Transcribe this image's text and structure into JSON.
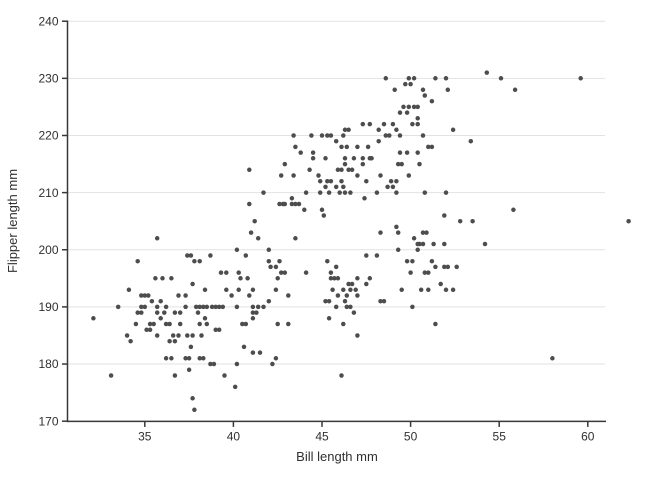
{
  "colors": {
    "point": "#4d4d4d",
    "grid": "#e2e2e2",
    "axis": "#383838",
    "text": "#303030",
    "background": "#ffffff"
  },
  "chart_data": {
    "type": "scatter",
    "title": "",
    "xlabel": "Bill length mm",
    "ylabel": "Flipper length mm",
    "x_ticks": [
      35,
      40,
      45,
      50,
      55,
      60
    ],
    "y_ticks": [
      170,
      180,
      190,
      200,
      210,
      220,
      230,
      240
    ],
    "xlim": [
      30.7,
      61.0
    ],
    "ylim": [
      170,
      240
    ],
    "grid": "horizontal-only",
    "legend": "none",
    "points": [
      [
        48.6,
        230
      ],
      [
        49.9,
        230
      ],
      [
        50.2,
        230
      ],
      [
        51.4,
        230
      ],
      [
        52.0,
        230
      ],
      [
        49.7,
        229
      ],
      [
        50.0,
        229
      ],
      [
        49.1,
        228
      ],
      [
        50.7,
        228
      ],
      [
        52.1,
        228
      ],
      [
        54.3,
        231
      ],
      [
        55.1,
        230
      ],
      [
        55.9,
        228
      ],
      [
        59.6,
        230
      ],
      [
        49.4,
        224
      ],
      [
        49.6,
        225
      ],
      [
        49.8,
        224
      ],
      [
        49.9,
        225
      ],
      [
        50.2,
        225
      ],
      [
        50.4,
        225
      ],
      [
        50.8,
        227
      ],
      [
        51.2,
        226
      ],
      [
        50.4,
        223
      ],
      [
        47.3,
        222
      ],
      [
        47.7,
        222
      ],
      [
        48.5,
        222
      ],
      [
        49.0,
        222
      ],
      [
        50.1,
        222
      ],
      [
        50.4,
        222
      ],
      [
        43.4,
        220
      ],
      [
        44.4,
        220
      ],
      [
        45.0,
        220
      ],
      [
        45.3,
        220
      ],
      [
        45.5,
        220
      ],
      [
        46.2,
        220
      ],
      [
        46.3,
        221
      ],
      [
        46.5,
        221
      ],
      [
        48.2,
        221
      ],
      [
        48.6,
        220
      ],
      [
        48.8,
        220
      ],
      [
        49.2,
        221
      ],
      [
        49.4,
        220
      ],
      [
        50.7,
        220
      ],
      [
        52.4,
        221
      ],
      [
        43.5,
        218
      ],
      [
        45.8,
        219
      ],
      [
        46.1,
        218
      ],
      [
        46.4,
        218
      ],
      [
        47.0,
        218
      ],
      [
        47.6,
        218
      ],
      [
        48.2,
        219
      ],
      [
        51.0,
        218
      ],
      [
        51.2,
        218
      ],
      [
        53.4,
        219
      ],
      [
        43.8,
        217
      ],
      [
        44.5,
        217
      ],
      [
        49.4,
        217
      ],
      [
        49.8,
        217
      ],
      [
        50.4,
        217
      ],
      [
        42.9,
        215
      ],
      [
        44.5,
        216
      ],
      [
        45.2,
        216
      ],
      [
        46.3,
        216
      ],
      [
        46.3,
        215
      ],
      [
        46.8,
        216
      ],
      [
        47.3,
        216
      ],
      [
        47.3,
        215
      ],
      [
        47.7,
        216
      ],
      [
        47.8,
        216
      ],
      [
        49.3,
        215
      ],
      [
        49.5,
        215
      ],
      [
        50.5,
        215
      ],
      [
        40.9,
        214
      ],
      [
        42.7,
        213
      ],
      [
        43.4,
        213
      ],
      [
        44.3,
        214
      ],
      [
        44.8,
        213
      ],
      [
        44.9,
        212
      ],
      [
        45.9,
        214
      ],
      [
        46.1,
        214
      ],
      [
        46.5,
        214
      ],
      [
        46.7,
        214
      ],
      [
        47.0,
        213
      ],
      [
        45.3,
        212
      ],
      [
        45.5,
        212
      ],
      [
        46.1,
        212
      ],
      [
        47.5,
        212
      ],
      [
        48.3,
        213
      ],
      [
        48.9,
        212
      ],
      [
        49.2,
        212
      ],
      [
        49.9,
        213
      ],
      [
        41.7,
        210
      ],
      [
        44.1,
        210
      ],
      [
        44.9,
        210
      ],
      [
        45.2,
        211
      ],
      [
        45.4,
        210
      ],
      [
        45.8,
        211
      ],
      [
        46.0,
        210
      ],
      [
        46.2,
        211
      ],
      [
        46.3,
        210
      ],
      [
        46.6,
        210
      ],
      [
        47.4,
        209
      ],
      [
        48.1,
        210
      ],
      [
        48.7,
        211
      ],
      [
        49.0,
        211
      ],
      [
        49.2,
        210
      ],
      [
        43.3,
        209
      ],
      [
        50.8,
        210
      ],
      [
        52.0,
        210
      ],
      [
        40.9,
        208
      ],
      [
        42.6,
        208
      ],
      [
        42.8,
        208
      ],
      [
        42.9,
        208
      ],
      [
        43.3,
        208
      ],
      [
        43.5,
        208
      ],
      [
        43.7,
        208
      ],
      [
        44.0,
        207
      ],
      [
        45.0,
        207
      ],
      [
        45.1,
        206
      ],
      [
        55.8,
        207
      ],
      [
        51.9,
        206
      ],
      [
        41.2,
        205
      ],
      [
        41.0,
        203
      ],
      [
        41.4,
        202
      ],
      [
        35.7,
        202
      ],
      [
        48.3,
        203
      ],
      [
        49.2,
        204
      ],
      [
        49.3,
        203
      ],
      [
        43.5,
        202
      ],
      [
        50.2,
        202
      ],
      [
        50.7,
        203
      ],
      [
        50.9,
        203
      ],
      [
        52.8,
        205
      ],
      [
        53.5,
        205
      ],
      [
        50.4,
        201
      ],
      [
        50.5,
        201
      ],
      [
        50.7,
        201
      ],
      [
        51.3,
        201
      ],
      [
        51.9,
        201
      ],
      [
        54.2,
        201
      ],
      [
        62.3,
        205
      ],
      [
        42.0,
        200
      ],
      [
        40.2,
        200
      ],
      [
        49.3,
        200
      ],
      [
        50.4,
        200
      ],
      [
        40.7,
        199
      ],
      [
        37.4,
        199
      ],
      [
        37.6,
        199
      ],
      [
        38.7,
        199
      ],
      [
        47.5,
        199
      ],
      [
        48.1,
        199
      ],
      [
        37.8,
        198
      ],
      [
        38.1,
        198
      ],
      [
        34.6,
        198
      ],
      [
        42.6,
        198
      ],
      [
        42.0,
        198
      ],
      [
        45.3,
        198
      ],
      [
        49.8,
        198
      ],
      [
        50.1,
        198
      ],
      [
        51.2,
        198
      ],
      [
        39.3,
        196
      ],
      [
        39.6,
        196
      ],
      [
        40.3,
        196
      ],
      [
        42.7,
        196
      ],
      [
        42.9,
        196
      ],
      [
        44.1,
        196
      ],
      [
        45.5,
        196
      ],
      [
        45.8,
        197
      ],
      [
        42.4,
        197
      ],
      [
        42.1,
        197
      ],
      [
        50.0,
        196
      ],
      [
        50.8,
        196
      ],
      [
        51.0,
        196
      ],
      [
        51.4,
        197
      ],
      [
        51.9,
        197
      ],
      [
        52.1,
        197
      ],
      [
        52.6,
        197
      ],
      [
        35.6,
        195
      ],
      [
        36.0,
        195
      ],
      [
        36.5,
        195
      ],
      [
        40.4,
        195
      ],
      [
        40.8,
        195
      ],
      [
        42.5,
        195
      ],
      [
        45.5,
        195
      ],
      [
        45.7,
        195
      ],
      [
        45.9,
        195
      ],
      [
        47.0,
        195
      ],
      [
        47.7,
        195
      ],
      [
        47.5,
        194
      ],
      [
        46.5,
        194
      ],
      [
        46.7,
        194
      ],
      [
        37.7,
        194
      ],
      [
        51.7,
        194
      ],
      [
        46.9,
        193
      ],
      [
        34.1,
        193
      ],
      [
        38.4,
        193
      ],
      [
        39.6,
        193
      ],
      [
        40.3,
        193
      ],
      [
        41.1,
        193
      ],
      [
        42.4,
        193
      ],
      [
        45.6,
        193
      ],
      [
        46.2,
        193
      ],
      [
        46.6,
        193
      ],
      [
        49.5,
        193
      ],
      [
        50.6,
        193
      ],
      [
        51.0,
        193
      ],
      [
        52.0,
        193
      ],
      [
        52.4,
        193
      ],
      [
        43.1,
        192
      ],
      [
        34.8,
        192
      ],
      [
        35.0,
        192
      ],
      [
        35.2,
        192
      ],
      [
        36.9,
        192
      ],
      [
        37.3,
        192
      ],
      [
        39.9,
        192
      ],
      [
        40.9,
        192
      ],
      [
        45.9,
        192
      ],
      [
        46.4,
        192
      ],
      [
        47.0,
        192
      ],
      [
        33.5,
        190
      ],
      [
        34.8,
        190
      ],
      [
        35.0,
        190
      ],
      [
        35.4,
        191
      ],
      [
        35.7,
        190
      ],
      [
        35.9,
        191
      ],
      [
        36.2,
        190
      ],
      [
        37.3,
        190
      ],
      [
        37.9,
        190
      ],
      [
        38.1,
        190
      ],
      [
        38.3,
        190
      ],
      [
        38.5,
        190
      ],
      [
        38.8,
        190
      ],
      [
        39.0,
        190
      ],
      [
        39.2,
        190
      ],
      [
        39.4,
        190
      ],
      [
        40.2,
        190
      ],
      [
        41.1,
        190
      ],
      [
        41.4,
        190
      ],
      [
        41.7,
        190
      ],
      [
        42.0,
        191
      ],
      [
        45.2,
        191
      ],
      [
        45.4,
        191
      ],
      [
        46.3,
        191
      ],
      [
        45.8,
        190
      ],
      [
        46.4,
        190
      ],
      [
        46.6,
        190
      ],
      [
        48.3,
        191
      ],
      [
        48.5,
        191
      ],
      [
        50.1,
        190
      ],
      [
        32.1,
        188
      ],
      [
        34.6,
        189
      ],
      [
        34.8,
        189
      ],
      [
        35.7,
        189
      ],
      [
        35.9,
        188
      ],
      [
        36.1,
        189
      ],
      [
        36.7,
        189
      ],
      [
        37.0,
        189
      ],
      [
        38.0,
        189
      ],
      [
        38.4,
        188
      ],
      [
        41.1,
        189
      ],
      [
        41.1,
        188
      ],
      [
        41.3,
        189
      ],
      [
        46.8,
        189
      ],
      [
        45.4,
        188
      ],
      [
        34.5,
        187
      ],
      [
        35.3,
        187
      ],
      [
        35.5,
        187
      ],
      [
        36.2,
        187
      ],
      [
        36.4,
        187
      ],
      [
        37.0,
        187
      ],
      [
        38.1,
        187
      ],
      [
        38.5,
        187
      ],
      [
        40.5,
        187
      ],
      [
        40.7,
        187
      ],
      [
        42.5,
        187
      ],
      [
        43.1,
        187
      ],
      [
        46.2,
        187
      ],
      [
        51.4,
        187
      ],
      [
        35.1,
        186
      ],
      [
        35.3,
        186
      ],
      [
        39.0,
        186
      ],
      [
        39.2,
        186
      ],
      [
        35.7,
        185
      ],
      [
        34.0,
        185
      ],
      [
        36.6,
        185
      ],
      [
        36.9,
        185
      ],
      [
        37.4,
        185
      ],
      [
        37.7,
        185
      ],
      [
        38.2,
        185
      ],
      [
        47.0,
        185
      ],
      [
        34.2,
        184
      ],
      [
        36.4,
        184
      ],
      [
        36.7,
        184
      ],
      [
        37.6,
        183
      ],
      [
        40.6,
        183
      ],
      [
        41.1,
        182
      ],
      [
        41.5,
        182
      ],
      [
        36.2,
        181
      ],
      [
        36.5,
        181
      ],
      [
        37.3,
        181
      ],
      [
        37.5,
        181
      ],
      [
        38.1,
        181
      ],
      [
        38.3,
        181
      ],
      [
        42.4,
        181
      ],
      [
        58.0,
        181
      ],
      [
        38.7,
        180
      ],
      [
        38.9,
        180
      ],
      [
        40.2,
        180
      ],
      [
        42.2,
        180
      ],
      [
        37.5,
        179
      ],
      [
        36.7,
        178
      ],
      [
        39.5,
        178
      ],
      [
        46.1,
        178
      ],
      [
        33.1,
        178
      ],
      [
        40.1,
        176
      ],
      [
        37.7,
        174
      ],
      [
        37.8,
        172
      ]
    ]
  }
}
